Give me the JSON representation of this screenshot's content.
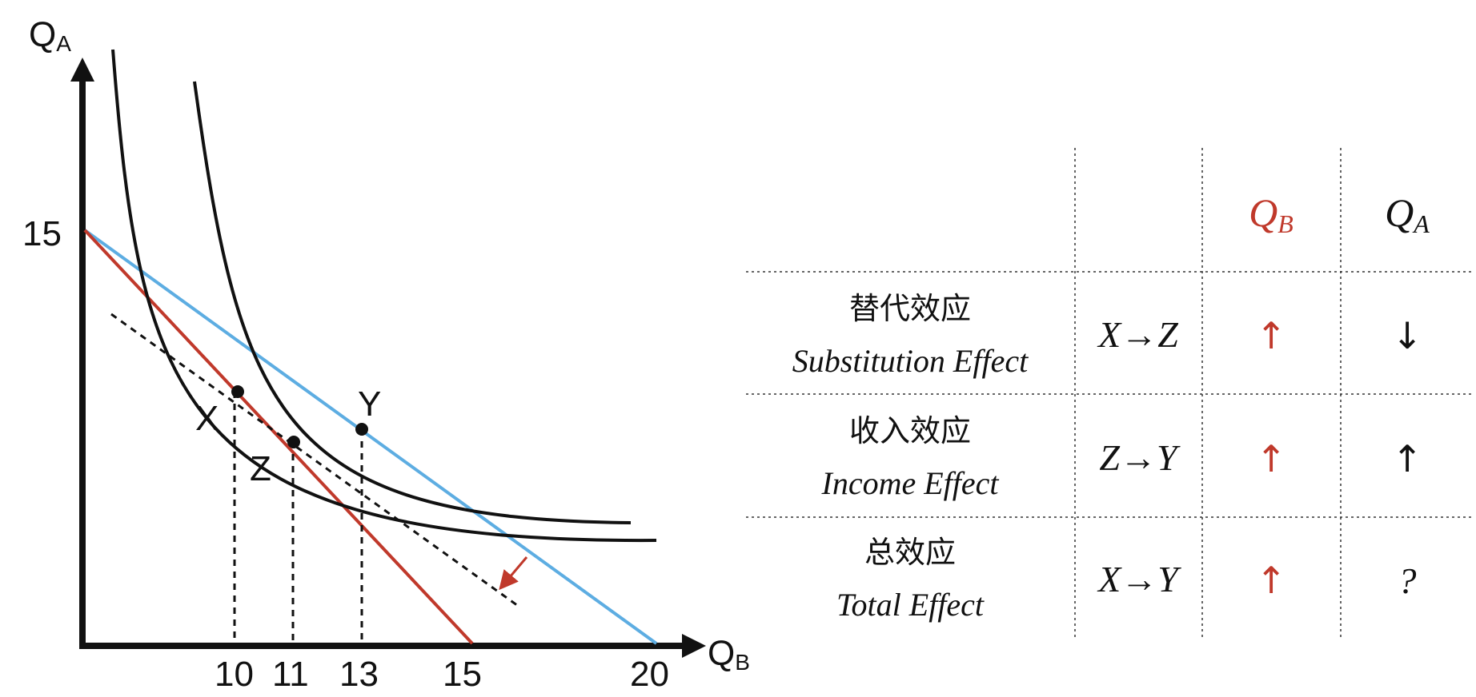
{
  "graph": {
    "y_axis": {
      "letter": "Q",
      "sub": "A"
    },
    "x_axis": {
      "letter": "Q",
      "sub": "B"
    },
    "y_tick": "15",
    "x_ticks": [
      "10",
      "11",
      "13",
      "15",
      "20"
    ],
    "points": [
      {
        "label": "X",
        "qb": 10
      },
      {
        "label": "Z",
        "qb": 11
      },
      {
        "label": "Y",
        "qb": 13
      }
    ],
    "lines": {
      "original_budget": {
        "from_qa": 15,
        "to_qb": 15,
        "color": "#c0392b"
      },
      "new_budget": {
        "from_qa": 15,
        "to_qb": 20,
        "color": "#5dade2"
      },
      "compensated_budget": {
        "style": "dashed",
        "color": "#111111"
      }
    },
    "shift_arrow_color": "#c0392b"
  },
  "table": {
    "headers": [
      {
        "text": "Q",
        "sub": "B",
        "color": "#c0392b"
      },
      {
        "text": "Q",
        "sub": "A",
        "color": "#111111"
      }
    ],
    "rows": [
      {
        "cn": "替代效应",
        "en": "Substitution Effect",
        "move": "X→Z",
        "qb": "↑",
        "qb_color": "#c0392b",
        "qa": "↓",
        "qa_color": "#111111"
      },
      {
        "cn": "收入效应",
        "en": "Income Effect",
        "move": "Z→Y",
        "qb": "↑",
        "qb_color": "#c0392b",
        "qa": "↑",
        "qa_color": "#111111"
      },
      {
        "cn": "总效应",
        "en": "Total Effect",
        "move": "X→Y",
        "qb": "↑",
        "qb_color": "#c0392b",
        "qa": "?",
        "qa_color": "#111111"
      }
    ]
  }
}
